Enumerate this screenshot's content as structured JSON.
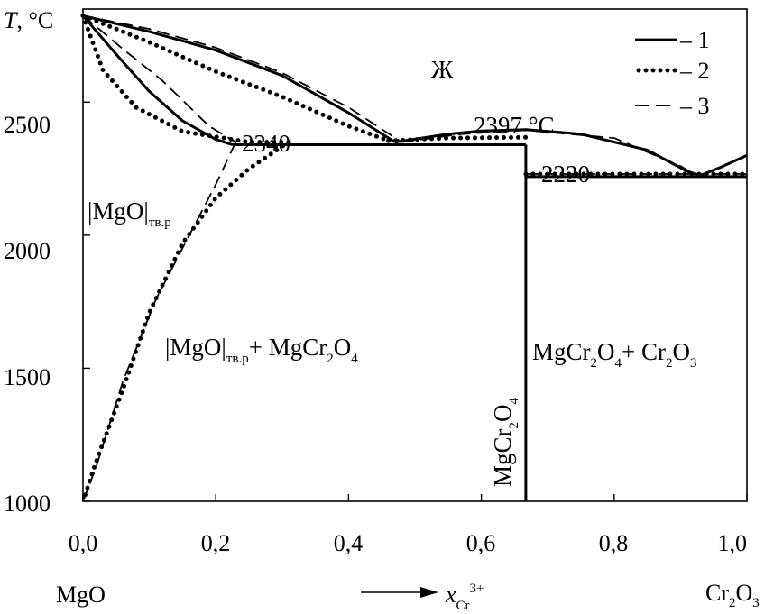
{
  "chart_data": {
    "type": "line",
    "ylabel": {
      "symbol": "T",
      "unit": ", °C"
    },
    "xlabel": {
      "left_end": "MgO",
      "arrow_var": "x",
      "arrow_sub": "Cr",
      "arrow_sup": "3+",
      "right_end_main": "Cr",
      "right_end_sub1": "2",
      "right_end_o": "O",
      "right_end_sub2": "3"
    },
    "xlim": [
      0.0,
      1.0
    ],
    "ylim": [
      1000,
      2850
    ],
    "x_ticks": [
      0.0,
      0.2,
      0.4,
      0.6,
      0.8,
      1.0
    ],
    "x_tick_labels": [
      "0,0",
      "0,2",
      "0,4",
      "0,6",
      "0,8",
      "1,0"
    ],
    "y_ticks": [
      1000,
      1500,
      2000,
      2500
    ],
    "y_tick_labels": [
      "1000",
      "1500",
      "2000",
      "2500"
    ],
    "legend": {
      "position": "top-right",
      "entries": [
        {
          "label": "– 1",
          "style": "solid"
        },
        {
          "label": "– 2",
          "style": "dotted"
        },
        {
          "label": "– 3",
          "style": "dashed"
        }
      ]
    },
    "annotations": {
      "liquid": "Ж",
      "t2340": "2340",
      "t2397": "2397 °C",
      "t2220": "2220"
    },
    "regions": {
      "mgo_ss_main": "|MgO|",
      "mgo_ss_sub": "тв.р",
      "two_phase_a_main": "|MgO|",
      "two_phase_a_sub": "тв.р",
      "two_phase_a_plus": "+ MgCr",
      "two_phase_a_s1": "2",
      "two_phase_a_o": "O",
      "two_phase_a_s2": "4",
      "two_phase_b_a": "MgCr",
      "two_phase_b_s1": "2",
      "two_phase_b_o": "O",
      "two_phase_b_s2": "4",
      "two_phase_b_plus": "+ Cr",
      "two_phase_b_s3": "2",
      "two_phase_b_o2": "O",
      "two_phase_b_s4": "3",
      "compound_a": "MgCr",
      "compound_s1": "2",
      "compound_o": "O",
      "compound_s2": "4"
    },
    "series": [
      {
        "name": "1",
        "style": "solid",
        "lines": [
          {
            "part": "liquidus_left",
            "points": [
              [
                0.0,
                2825
              ],
              [
                0.1,
                2765
              ],
              [
                0.2,
                2695
              ],
              [
                0.3,
                2600
              ],
              [
                0.4,
                2460
              ],
              [
                0.47,
                2350
              ]
            ]
          },
          {
            "part": "solidus_left",
            "points": [
              [
                0.0,
                2825
              ],
              [
                0.05,
                2680
              ],
              [
                0.1,
                2540
              ],
              [
                0.15,
                2430
              ],
              [
                0.2,
                2360
              ],
              [
                0.225,
                2340
              ]
            ]
          },
          {
            "part": "liquidus_mid",
            "points": [
              [
                0.47,
                2350
              ],
              [
                0.55,
                2380
              ],
              [
                0.6,
                2392
              ],
              [
                0.667,
                2397
              ],
              [
                0.75,
                2380
              ],
              [
                0.85,
                2320
              ],
              [
                0.91,
                2240
              ],
              [
                0.93,
                2225
              ]
            ]
          },
          {
            "part": "liquidus_right",
            "points": [
              [
                0.93,
                2225
              ],
              [
                0.96,
                2255
              ],
              [
                1.0,
                2300
              ]
            ]
          },
          {
            "part": "eutectic_2340",
            "points": [
              [
                0.225,
                2340
              ],
              [
                0.667,
                2340
              ]
            ]
          },
          {
            "part": "eutectic_2220",
            "points": [
              [
                0.667,
                2220
              ],
              [
                1.0,
                2220
              ]
            ]
          },
          {
            "part": "compound",
            "points": [
              [
                0.667,
                1000
              ],
              [
                0.667,
                2340
              ]
            ]
          }
        ]
      },
      {
        "name": "2",
        "style": "dotted",
        "lines": [
          {
            "part": "liquidus_left",
            "points": [
              [
                0.0,
                2825
              ],
              [
                0.1,
                2725
              ],
              [
                0.2,
                2615
              ],
              [
                0.3,
                2520
              ],
              [
                0.4,
                2410
              ],
              [
                0.46,
                2355
              ]
            ]
          },
          {
            "part": "solidus_left",
            "points": [
              [
                0.0,
                2825
              ],
              [
                0.03,
                2620
              ],
              [
                0.08,
                2480
              ],
              [
                0.15,
                2390
              ],
              [
                0.25,
                2350
              ],
              [
                0.31,
                2350
              ]
            ]
          },
          {
            "part": "solvus",
            "points": [
              [
                0.31,
                2350
              ],
              [
                0.25,
                2250
              ],
              [
                0.2,
                2140
              ],
              [
                0.15,
                1970
              ],
              [
                0.1,
                1710
              ],
              [
                0.06,
                1420
              ],
              [
                0.02,
                1150
              ],
              [
                0.0,
                1000
              ]
            ]
          },
          {
            "part": "liquidus_mid",
            "points": [
              [
                0.46,
                2355
              ],
              [
                0.55,
                2365
              ],
              [
                0.667,
                2368
              ]
            ]
          },
          {
            "part": "eutectic_2220",
            "points": [
              [
                0.667,
                2230
              ],
              [
                1.0,
                2230
              ]
            ]
          }
        ]
      },
      {
        "name": "3",
        "style": "dashed",
        "lines": [
          {
            "part": "liquidus_left",
            "points": [
              [
                0.0,
                2825
              ],
              [
                0.1,
                2775
              ],
              [
                0.2,
                2705
              ],
              [
                0.3,
                2610
              ],
              [
                0.4,
                2480
              ],
              [
                0.48,
                2350
              ]
            ]
          },
          {
            "part": "solidus_left",
            "points": [
              [
                0.0,
                2825
              ],
              [
                0.06,
                2700
              ],
              [
                0.12,
                2580
              ],
              [
                0.19,
                2410
              ],
              [
                0.23,
                2350
              ]
            ]
          },
          {
            "part": "solvus",
            "points": [
              [
                0.23,
                2350
              ],
              [
                0.2,
                2190
              ],
              [
                0.16,
                2000
              ],
              [
                0.11,
                1760
              ],
              [
                0.06,
                1450
              ],
              [
                0.02,
                1130
              ],
              [
                0.0,
                1000
              ]
            ]
          },
          {
            "part": "liquidus_mid",
            "points": [
              [
                0.48,
                2350
              ],
              [
                0.57,
                2380
              ],
              [
                0.667,
                2395
              ],
              [
                0.8,
                2365
              ],
              [
                0.9,
                2260
              ],
              [
                0.92,
                2230
              ]
            ]
          },
          {
            "part": "eutectic_2220",
            "points": [
              [
                0.667,
                2230
              ],
              [
                1.0,
                2230
              ]
            ]
          }
        ]
      }
    ]
  }
}
